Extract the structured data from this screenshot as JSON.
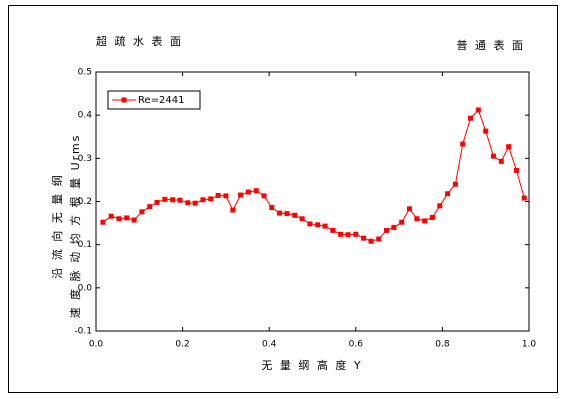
{
  "chart_data": {
    "type": "line",
    "annotations": [
      "超 疏 水 表 面",
      "普 通 表 面"
    ],
    "x_label": "无 量 纲 高 度 Y",
    "y_label": [
      "沿 流 向 无 量 纲",
      "速 度 脉 动 均 方 根 量   Urms"
    ],
    "x": [
      0.016,
      0.035,
      0.053,
      0.071,
      0.088,
      0.106,
      0.124,
      0.141,
      0.159,
      0.177,
      0.194,
      0.212,
      0.229,
      0.247,
      0.265,
      0.282,
      0.3,
      0.316,
      0.334,
      0.352,
      0.37,
      0.388,
      0.406,
      0.424,
      0.441,
      0.459,
      0.476,
      0.494,
      0.512,
      0.529,
      0.547,
      0.565,
      0.582,
      0.6,
      0.618,
      0.635,
      0.653,
      0.671,
      0.688,
      0.706,
      0.724,
      0.741,
      0.759,
      0.777,
      0.794,
      0.812,
      0.83,
      0.847,
      0.865,
      0.883,
      0.9,
      0.918,
      0.936,
      0.953,
      0.971,
      0.989
    ],
    "series": [
      {
        "name": "Re=2441",
        "color": "#ff0000",
        "values": [
          0.152,
          0.166,
          0.16,
          0.162,
          0.157,
          0.176,
          0.188,
          0.198,
          0.205,
          0.204,
          0.203,
          0.197,
          0.196,
          0.204,
          0.206,
          0.214,
          0.213,
          0.18,
          0.215,
          0.222,
          0.225,
          0.213,
          0.186,
          0.173,
          0.172,
          0.168,
          0.16,
          0.148,
          0.146,
          0.143,
          0.133,
          0.124,
          0.123,
          0.124,
          0.115,
          0.108,
          0.113,
          0.133,
          0.14,
          0.152,
          0.183,
          0.16,
          0.155,
          0.163,
          0.19,
          0.218,
          0.24,
          0.333,
          0.393,
          0.412,
          0.363,
          0.305,
          0.293,
          0.327,
          0.272,
          0.208
        ]
      }
    ],
    "xlim": [
      0,
      1
    ],
    "ylim": [
      -0.1,
      0.5
    ],
    "xticks": [
      {
        "value": 0,
        "label": "0.0"
      },
      0.2,
      0.4,
      0.6,
      0.8,
      {
        "value": 1,
        "label": "1.0"
      }
    ],
    "yticks": [
      -0.1,
      {
        "value": 0,
        "label": "0.0"
      },
      0.1,
      0.2,
      0.3,
      0.4,
      0.5
    ],
    "legend": "upper left",
    "grid": false
  }
}
